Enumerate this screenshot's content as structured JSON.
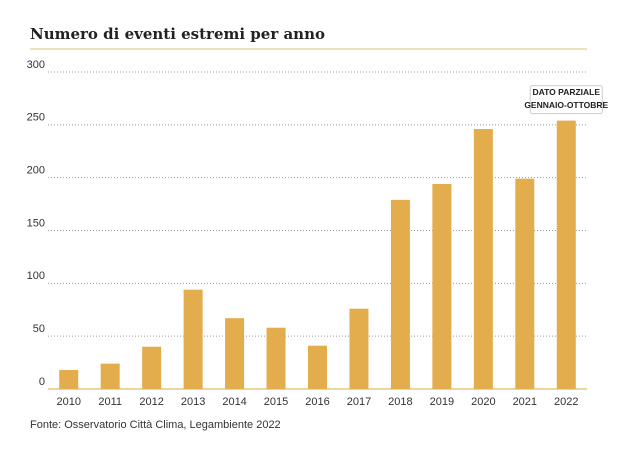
{
  "chart_data": {
    "type": "bar",
    "title": "Numero di eventi estremi per anno",
    "categories": [
      "2010",
      "2011",
      "2012",
      "2013",
      "2014",
      "2015",
      "2016",
      "2017",
      "2018",
      "2019",
      "2020",
      "2021",
      "2022"
    ],
    "values": [
      18,
      24,
      40,
      94,
      67,
      58,
      41,
      76,
      179,
      194,
      246,
      199,
      254
    ],
    "color": "#e3ac4c",
    "ylim": [
      0,
      300
    ],
    "yticks": [
      0,
      50,
      100,
      150,
      200,
      250,
      300
    ],
    "grid": true,
    "annotation": [
      "DATO PARZIALE",
      "GENNAIO-OTTOBRE"
    ],
    "source": "Fonte: Osservatorio Città Clima, Legambiente 2022"
  }
}
